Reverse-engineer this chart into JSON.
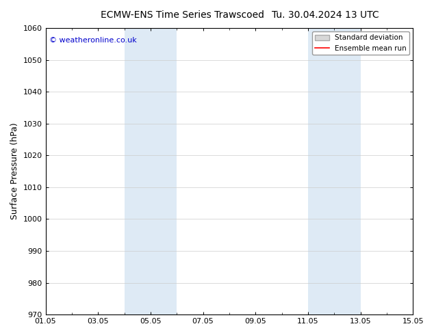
{
  "title_left": "ECMW-ENS Time Series Trawscoed",
  "title_right": "Tu. 30.04.2024 13 UTC",
  "ylabel": "Surface Pressure (hPa)",
  "xlim": [
    0,
    14
  ],
  "ylim": [
    970,
    1060
  ],
  "yticks": [
    970,
    980,
    990,
    1000,
    1010,
    1020,
    1030,
    1040,
    1050,
    1060
  ],
  "xtick_positions": [
    0,
    2,
    4,
    6,
    8,
    10,
    12,
    14
  ],
  "xtick_labels": [
    "01.05",
    "03.05",
    "05.05",
    "07.05",
    "09.05",
    "11.05",
    "13.05",
    "15.05"
  ],
  "shaded_bands": [
    {
      "x_start": 3.0,
      "x_end": 5.0
    },
    {
      "x_start": 10.0,
      "x_end": 12.0
    }
  ],
  "band_color": "#deeaf5",
  "background_color": "#ffffff",
  "watermark_text": "© weatheronline.co.uk",
  "watermark_color": "#0000cc",
  "legend_entries": [
    "Standard deviation",
    "Ensemble mean run"
  ],
  "legend_patch_color": "#d8d8d8",
  "legend_patch_edge": "#aaaaaa",
  "legend_line_color": "#ff0000",
  "title_fontsize": 10,
  "axis_label_fontsize": 9,
  "tick_fontsize": 8,
  "watermark_fontsize": 8
}
